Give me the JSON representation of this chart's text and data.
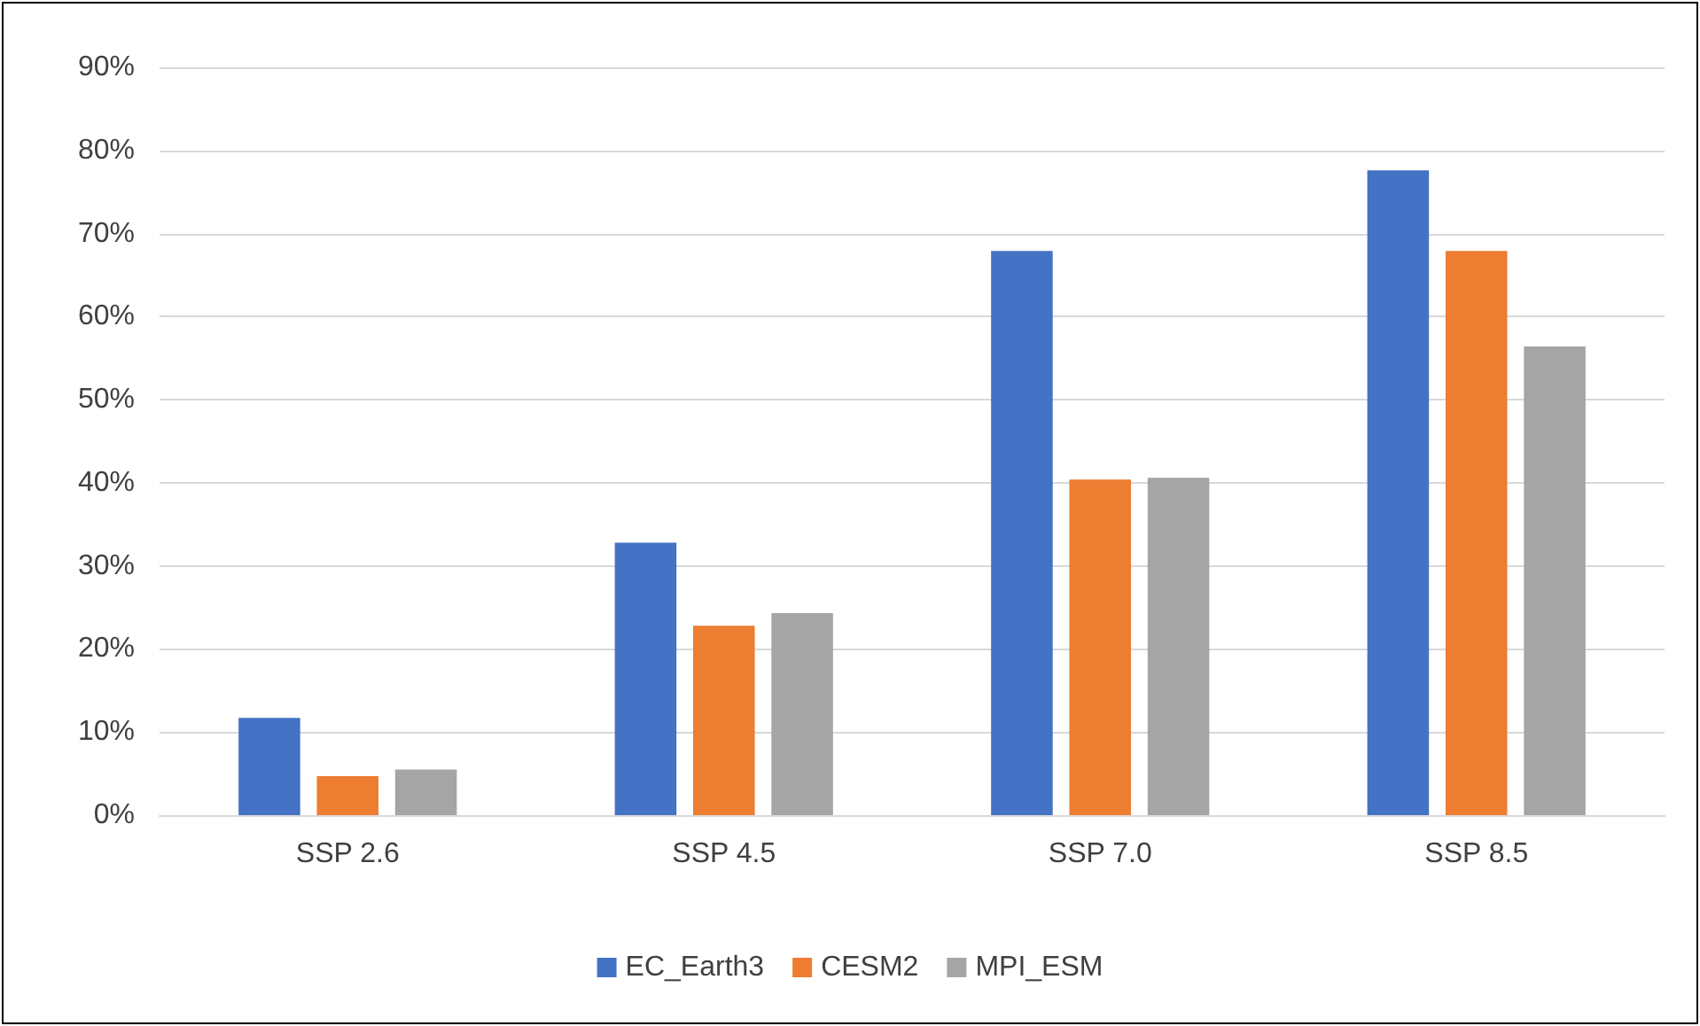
{
  "chart_data": {
    "type": "bar",
    "categories": [
      "SSP 2.6",
      "SSP 4.5",
      "SSP 7.0",
      "SSP 8.5"
    ],
    "series": [
      {
        "name": "EC_Earth3",
        "color": "#4472c4",
        "values": [
          11.7,
          32.8,
          67.9,
          77.6
        ]
      },
      {
        "name": "CESM2",
        "color": "#ed7d31",
        "values": [
          4.7,
          22.8,
          40.4,
          67.9
        ]
      },
      {
        "name": "MPI_ESM",
        "color": "#a5a5a5",
        "values": [
          5.5,
          24.3,
          40.6,
          56.4
        ]
      }
    ],
    "ylim": [
      0,
      90
    ],
    "yticks": [
      {
        "value": 0,
        "label": "0%"
      },
      {
        "value": 10,
        "label": "10%"
      },
      {
        "value": 20,
        "label": "20%"
      },
      {
        "value": 30,
        "label": "30%"
      },
      {
        "value": 40,
        "label": "40%"
      },
      {
        "value": 50,
        "label": "50%"
      },
      {
        "value": 60,
        "label": "60%"
      },
      {
        "value": 70,
        "label": "70%"
      },
      {
        "value": 80,
        "label": "80%"
      },
      {
        "value": 90,
        "label": "90%"
      }
    ],
    "grid": "y",
    "legend": "bottom"
  }
}
